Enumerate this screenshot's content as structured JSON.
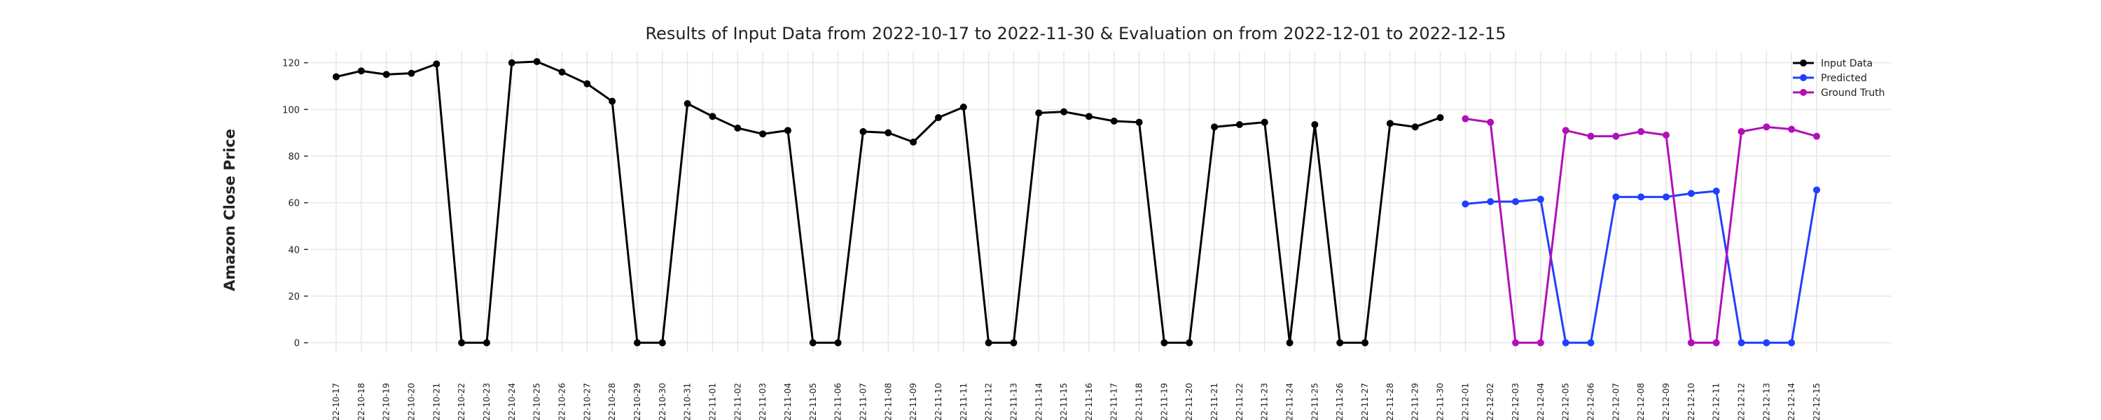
{
  "chart_data": {
    "type": "line",
    "title": "Results of Input Data from 2022-10-17 to 2022-11-30 & Evaluation on from 2022-12-01 to 2022-12-15",
    "y_label": "Amazon Close Price",
    "categories": [
      "2022-10-17",
      "2022-10-18",
      "2022-10-19",
      "2022-10-20",
      "2022-10-21",
      "2022-10-22",
      "2022-10-23",
      "2022-10-24",
      "2022-10-25",
      "2022-10-26",
      "2022-10-27",
      "2022-10-28",
      "2022-10-29",
      "2022-10-30",
      "2022-10-31",
      "2022-11-01",
      "2022-11-02",
      "2022-11-03",
      "2022-11-04",
      "2022-11-05",
      "2022-11-06",
      "2022-11-07",
      "2022-11-08",
      "2022-11-09",
      "2022-11-10",
      "2022-11-11",
      "2022-11-12",
      "2022-11-13",
      "2022-11-14",
      "2022-11-15",
      "2022-11-16",
      "2022-11-17",
      "2022-11-18",
      "2022-11-19",
      "2022-11-20",
      "2022-11-21",
      "2022-11-22",
      "2022-11-23",
      "2022-11-24",
      "2022-11-25",
      "2022-11-26",
      "2022-11-27",
      "2022-11-28",
      "2022-11-29",
      "2022-11-30",
      "2022-12-01",
      "2022-12-02",
      "2022-12-03",
      "2022-12-04",
      "2022-12-05",
      "2022-12-06",
      "2022-12-07",
      "2022-12-08",
      "2022-12-09",
      "2022-12-10",
      "2022-12-11",
      "2022-12-12",
      "2022-12-13",
      "2022-12-14",
      "2022-12-15"
    ],
    "series": [
      {
        "name": "Input Data",
        "color": "#000000",
        "values": [
          114,
          116.5,
          115,
          115.5,
          119.5,
          0,
          0,
          120,
          120.5,
          116,
          111,
          103.5,
          0,
          0,
          102.5,
          97,
          92,
          89.5,
          91,
          0,
          0,
          90.5,
          90,
          86,
          96.5,
          101,
          0,
          0,
          98.5,
          99,
          97,
          95,
          94.5,
          0,
          0,
          92.5,
          93.5,
          94.5,
          0,
          93.5,
          0,
          0,
          94,
          92.5,
          96.5,
          null,
          null,
          null,
          null,
          null,
          null,
          null,
          null,
          null,
          null,
          null,
          null,
          null,
          null,
          null
        ]
      },
      {
        "name": "Predicted",
        "color": "#1f3fff",
        "values": [
          null,
          null,
          null,
          null,
          null,
          null,
          null,
          null,
          null,
          null,
          null,
          null,
          null,
          null,
          null,
          null,
          null,
          null,
          null,
          null,
          null,
          null,
          null,
          null,
          null,
          null,
          null,
          null,
          null,
          null,
          null,
          null,
          null,
          null,
          null,
          null,
          null,
          null,
          null,
          null,
          null,
          null,
          null,
          null,
          null,
          59.5,
          60.5,
          60.5,
          61.5,
          0,
          0,
          62.5,
          62.5,
          62.5,
          64,
          65,
          0,
          0,
          0,
          65.5
        ]
      },
      {
        "name": "Ground Truth",
        "color": "#b010b8",
        "values": [
          null,
          null,
          null,
          null,
          null,
          null,
          null,
          null,
          null,
          null,
          null,
          null,
          null,
          null,
          null,
          null,
          null,
          null,
          null,
          null,
          null,
          null,
          null,
          null,
          null,
          null,
          null,
          null,
          null,
          null,
          null,
          null,
          null,
          null,
          null,
          null,
          null,
          null,
          null,
          null,
          null,
          null,
          null,
          null,
          null,
          96,
          94.5,
          0,
          0,
          91,
          88.5,
          88.5,
          90.5,
          89,
          0,
          0,
          90.5,
          92.5,
          91.5,
          88.5
        ]
      }
    ],
    "ylim": [
      -4,
      125
    ],
    "yticks": [
      0,
      20,
      40,
      60,
      80,
      100,
      120
    ],
    "grid": true,
    "legend": "upper right"
  }
}
